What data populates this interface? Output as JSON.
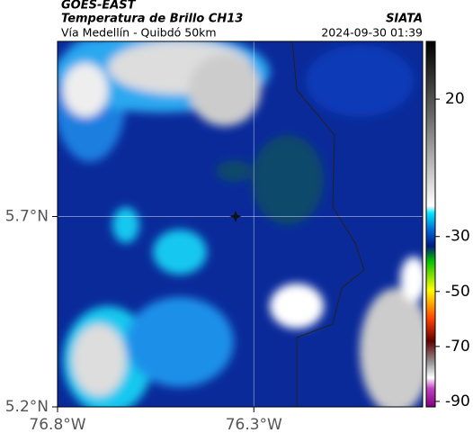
{
  "header": {
    "satellite": "GOES-EAST",
    "product": "Temperatura de Brillo CH13",
    "source": "SIATA",
    "location": "Vía Medellín - Quibdó 50km",
    "timestamp": "2024-09-30 01:39"
  },
  "map": {
    "xlim": [
      -76.8,
      -75.87
    ],
    "ylim": [
      5.2,
      6.16
    ],
    "xticks": [
      {
        "value": -76.8,
        "label": "76.8°W"
      },
      {
        "value": -76.3,
        "label": "76.3°W"
      }
    ],
    "yticks": [
      {
        "value": 5.2,
        "label": "5.2°N"
      },
      {
        "value": 5.7,
        "label": "5.7°N"
      }
    ],
    "grid": true
  },
  "colorbar": {
    "lim": [
      41,
      -92
    ],
    "ticks": [
      20,
      -30,
      -50,
      -70,
      -90
    ]
  }
}
